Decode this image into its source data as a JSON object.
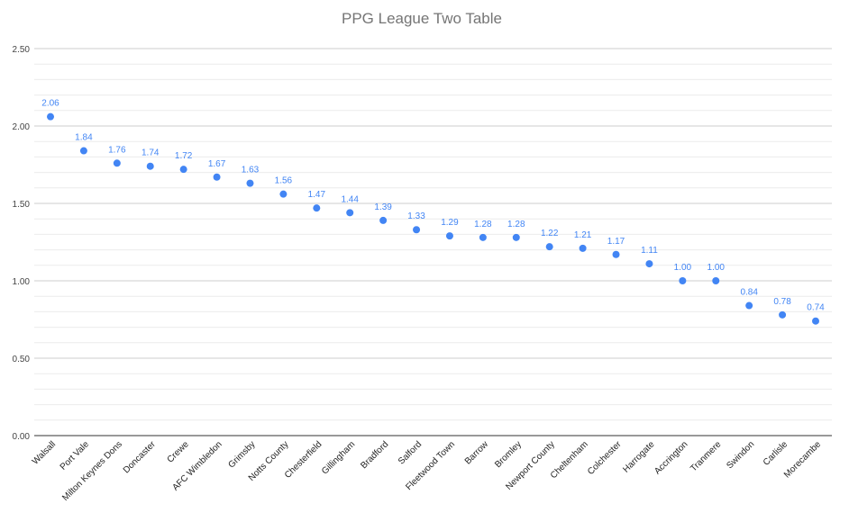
{
  "chart_data": {
    "type": "scatter",
    "title": "PPG League Two Table",
    "xlabel": "",
    "ylabel": "",
    "ylim": [
      0,
      2.5
    ],
    "y_ticks": [
      "0.00",
      "0.50",
      "1.00",
      "1.50",
      "2.00",
      "2.50"
    ],
    "grid": true,
    "legend": "none",
    "point_color": "#4285f4",
    "label_color": "#4285f4",
    "categories": [
      "Walsall",
      "Port Vale",
      "Milton Keynes Dons",
      "Doncaster",
      "Crewe",
      "AFC Wimbledon",
      "Grimsby",
      "Notts County",
      "Chesterfield",
      "Gillingham",
      "Bradford",
      "Salford",
      "Fleetwood Town",
      "Barrow",
      "Bromley",
      "Newport County",
      "Cheltenham",
      "Colchester",
      "Harrogate",
      "Accrington",
      "Tranmere",
      "Swindon",
      "Carlisle",
      "Morecambe"
    ],
    "values": [
      2.06,
      1.84,
      1.76,
      1.74,
      1.72,
      1.67,
      1.63,
      1.56,
      1.47,
      1.44,
      1.39,
      1.33,
      1.29,
      1.28,
      1.28,
      1.22,
      1.21,
      1.17,
      1.11,
      1.0,
      1.0,
      0.84,
      0.78,
      0.74
    ],
    "data_labels": [
      "2.06",
      "1.84",
      "1.76",
      "1.74",
      "1.72",
      "1.67",
      "1.63",
      "1.56",
      "1.47",
      "1.44",
      "1.39",
      "1.33",
      "1.29",
      "1.28",
      "1.28",
      "1.22",
      "1.21",
      "1.17",
      "1.11",
      "1.00",
      "1.00",
      "0.84",
      "0.78",
      "0.74"
    ]
  }
}
